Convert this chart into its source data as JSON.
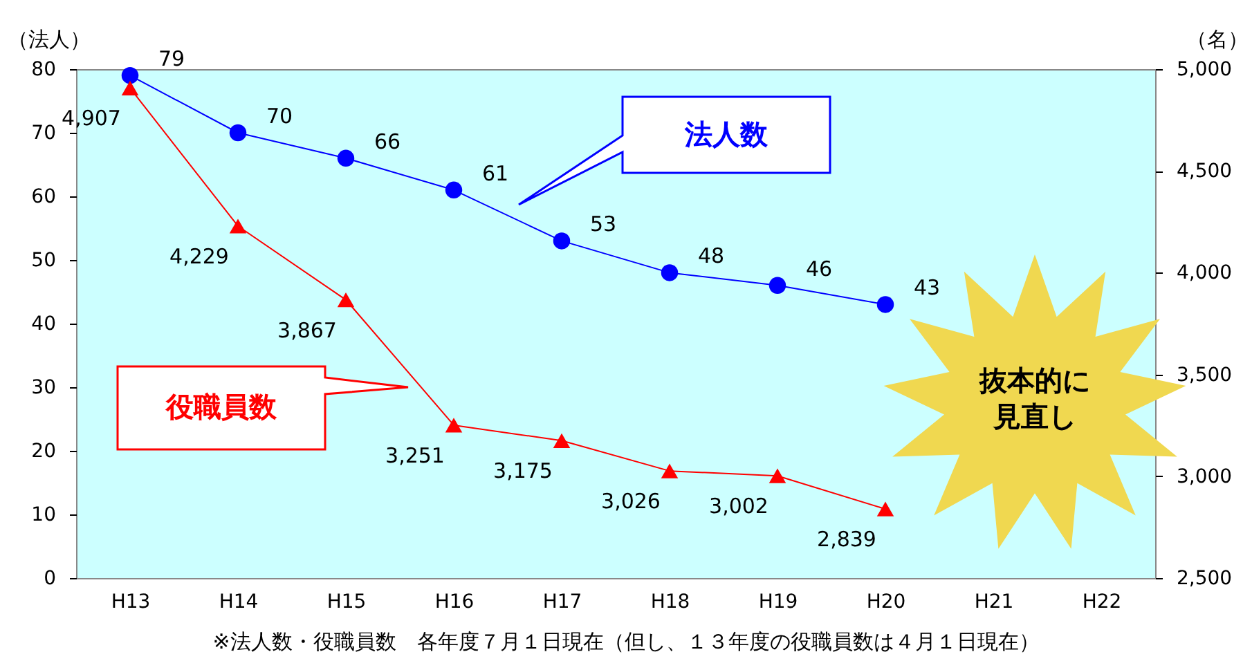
{
  "chart_data": {
    "type": "line",
    "categories": [
      "H13",
      "H14",
      "H15",
      "H16",
      "H17",
      "H18",
      "H19",
      "H20",
      "H21",
      "H22"
    ],
    "series": [
      {
        "name": "法人数",
        "color": "#0000ff",
        "marker": "circle",
        "values": [
          79,
          70,
          66,
          61,
          53,
          48,
          46,
          43,
          null,
          null
        ],
        "value_labels": [
          "79",
          "70",
          "66",
          "61",
          "53",
          "48",
          "46",
          "43",
          null,
          null
        ]
      },
      {
        "name": "役職員数",
        "color": "#ff0000",
        "marker": "triangle",
        "axis": "y2",
        "values": [
          4907,
          4229,
          3867,
          3251,
          3175,
          3026,
          3002,
          2839,
          null,
          null
        ],
        "value_labels": [
          "4,907",
          "4,229",
          "3,867",
          "3,251",
          "3,175",
          "3,026",
          "3,002",
          "2,839",
          null,
          null
        ]
      }
    ],
    "ylabel": "（法人）",
    "y2label": "（名）",
    "ylim": [
      0,
      80
    ],
    "yticks": [
      0,
      10,
      20,
      30,
      40,
      50,
      60,
      70,
      80
    ],
    "y2lim": [
      2500,
      5000
    ],
    "y2ticks": [
      {
        "value": 2500,
        "label": "2,500"
      },
      {
        "value": 3000,
        "label": "3,000"
      },
      {
        "value": 3500,
        "label": "3,500"
      },
      {
        "value": 4000,
        "label": "4,000"
      },
      {
        "value": 4500,
        "label": "4,500"
      },
      {
        "value": 5000,
        "label": "5,000"
      }
    ],
    "annotations": [
      "抜本的に見直し",
      "※法人数・役職員数　各年度７月１日現在（但し、１３年度の役職員数は４月１日現在）"
    ]
  }
}
